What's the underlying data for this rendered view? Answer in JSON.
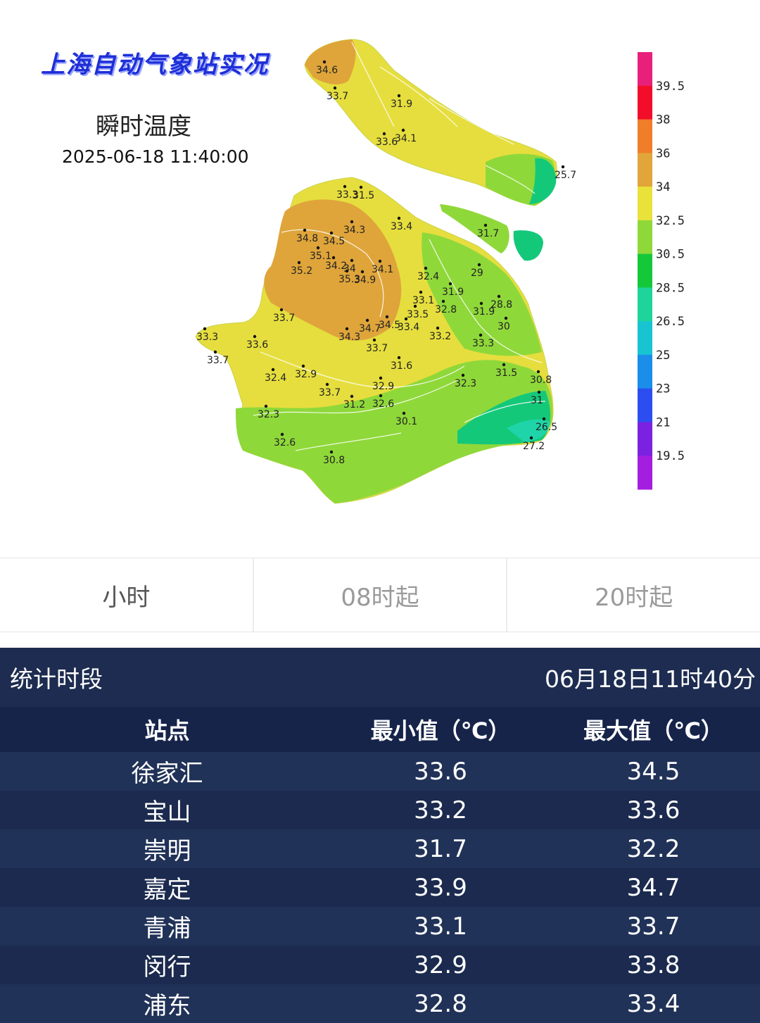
{
  "map": {
    "title": "上海自动气象站实况",
    "subtitle": "瞬时温度",
    "timestamp": "2025-06-18 11:40:00",
    "legend": {
      "labels": [
        "39.5",
        "38",
        "36",
        "34",
        "32.5",
        "30.5",
        "28.5",
        "26.5",
        "25",
        "23",
        "21",
        "19.5"
      ],
      "colors": [
        "#e8207a",
        "#f20d2a",
        "#ef7d2a",
        "#e2a53a",
        "#e9e23a",
        "#8fd83a",
        "#14c83a",
        "#1fd49a",
        "#18c4d2",
        "#1a8ee8",
        "#2c4ef0",
        "#7a22e0",
        "#a41ee0"
      ]
    },
    "stations": [
      {
        "v": "34.6"
      },
      {
        "v": "33.7"
      },
      {
        "v": "31.9"
      },
      {
        "v": "33.6"
      },
      {
        "v": "34.1"
      },
      {
        "v": "25.7"
      },
      {
        "v": "33.3"
      },
      {
        "v": "31.5"
      },
      {
        "v": "34.3"
      },
      {
        "v": "33.4"
      },
      {
        "v": "31.7"
      },
      {
        "v": "34.8"
      },
      {
        "v": "34.5"
      },
      {
        "v": "35.1"
      },
      {
        "v": "34.2"
      },
      {
        "v": "34"
      },
      {
        "v": "34.1"
      },
      {
        "v": "35.2"
      },
      {
        "v": "35.3"
      },
      {
        "v": "34.9"
      },
      {
        "v": "32.4"
      },
      {
        "v": "29"
      },
      {
        "v": "31.9"
      },
      {
        "v": "33.1"
      },
      {
        "v": "32.8"
      },
      {
        "v": "33.5"
      },
      {
        "v": "31.9"
      },
      {
        "v": "28.8"
      },
      {
        "v": "33.7"
      },
      {
        "v": "34.7"
      },
      {
        "v": "34.5"
      },
      {
        "v": "33.4"
      },
      {
        "v": "30"
      },
      {
        "v": "33.3"
      },
      {
        "v": "34.3"
      },
      {
        "v": "33.2"
      },
      {
        "v": "33.7"
      },
      {
        "v": "33.6"
      },
      {
        "v": "33.3"
      },
      {
        "v": "33.7"
      },
      {
        "v": "31.6"
      },
      {
        "v": "31.5"
      },
      {
        "v": "32.4"
      },
      {
        "v": "32.9"
      },
      {
        "v": "32.3"
      },
      {
        "v": "30.8"
      },
      {
        "v": "33.7"
      },
      {
        "v": "32.9"
      },
      {
        "v": "31.2"
      },
      {
        "v": "32.6"
      },
      {
        "v": "31"
      },
      {
        "v": "32.3"
      },
      {
        "v": "30.1"
      },
      {
        "v": "26.5"
      },
      {
        "v": "32.6"
      },
      {
        "v": "27.2"
      },
      {
        "v": "30.8"
      }
    ]
  },
  "tabs": [
    "小时",
    "08时起",
    "20时起"
  ],
  "stats": {
    "period_label": "统计时段",
    "period_value": "06月18日11时40分",
    "headers": [
      "站点",
      "最小值（℃）",
      "最大值（℃）"
    ],
    "rows": [
      {
        "station": "徐家汇",
        "min": "33.6",
        "max": "34.5"
      },
      {
        "station": "宝山",
        "min": "33.2",
        "max": "33.6"
      },
      {
        "station": "崇明",
        "min": "31.7",
        "max": "32.2"
      },
      {
        "station": "嘉定",
        "min": "33.9",
        "max": "34.7"
      },
      {
        "station": "青浦",
        "min": "33.1",
        "max": "33.7"
      },
      {
        "station": "闵行",
        "min": "32.9",
        "max": "33.8"
      },
      {
        "station": "浦东",
        "min": "32.8",
        "max": "33.4"
      }
    ]
  }
}
